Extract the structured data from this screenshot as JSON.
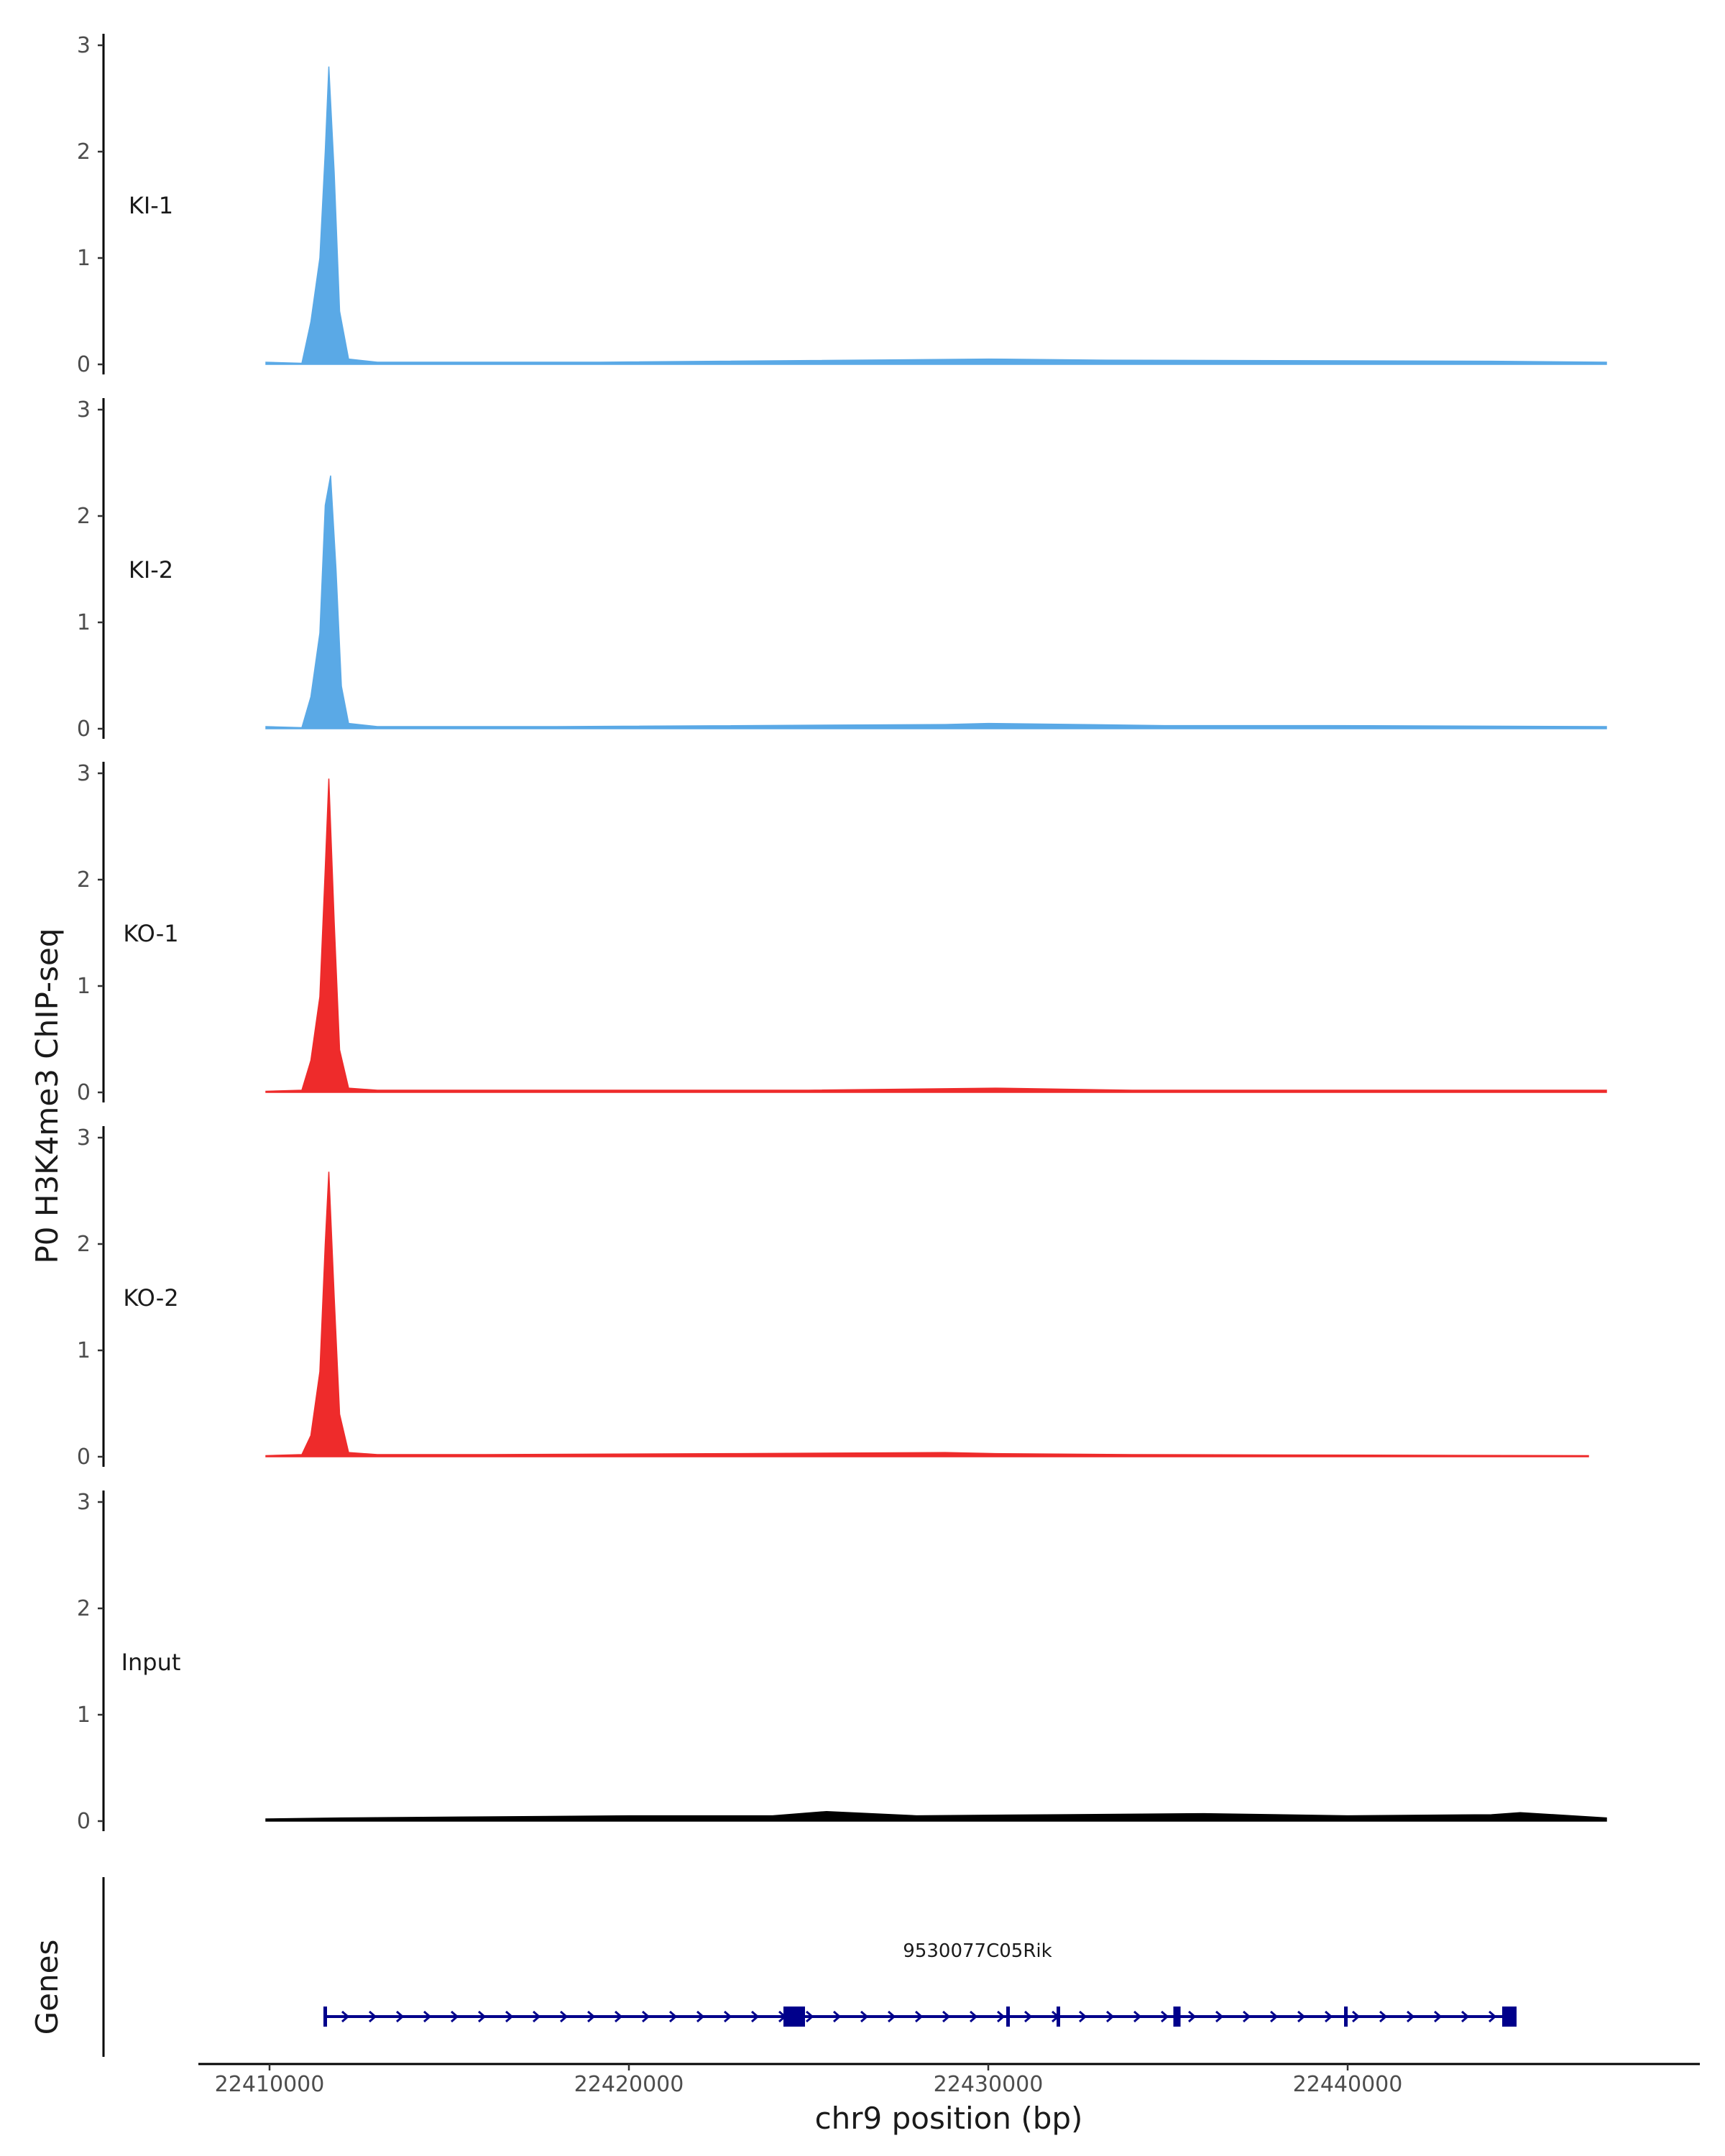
{
  "chart_data": {
    "type": "area",
    "ylabel": "P0 H3K4me3 ChIP-seq",
    "xlabel": "chr9 position (bp)",
    "region": "chr9",
    "xlim": [
      22407000,
      22449000
    ],
    "ylim": [
      0,
      3
    ],
    "y_ticks": [
      "0",
      "1",
      "2",
      "3"
    ],
    "x_ticks": [
      {
        "value": 22410000,
        "label": "22410000"
      },
      {
        "value": 22420000,
        "label": "22420000"
      },
      {
        "value": 22430000,
        "label": "22430000"
      },
      {
        "value": 22440000,
        "label": "22440000"
      }
    ],
    "grid": false,
    "legend": "none",
    "series": [
      {
        "name": "KI-1",
        "color": "#5aa9e6",
        "x": [
          22409900,
          22410900,
          22411150,
          22411400,
          22411550,
          22411650,
          22411800,
          22411950,
          22412200,
          22413000,
          22416000,
          22419200,
          22430000,
          22433300,
          22444000,
          22447200
        ],
        "y": [
          0.02,
          0.01,
          0.4,
          1.0,
          2.0,
          2.8,
          1.8,
          0.5,
          0.05,
          0.02,
          0.02,
          0.02,
          0.05,
          0.04,
          0.03,
          0.02
        ]
      },
      {
        "name": "KI-2",
        "color": "#5aa9e6",
        "x": [
          22409900,
          22410900,
          22411150,
          22411400,
          22411550,
          22411700,
          22411850,
          22412000,
          22412200,
          22413000,
          22418000,
          22428800,
          22430000,
          22434900,
          22439500,
          22447200
        ],
        "y": [
          0.02,
          0.01,
          0.3,
          0.9,
          2.1,
          2.38,
          1.5,
          0.4,
          0.05,
          0.02,
          0.02,
          0.04,
          0.05,
          0.03,
          0.03,
          0.02
        ]
      },
      {
        "name": "KO-1",
        "color": "#ee2b2b",
        "x": [
          22409900,
          22410900,
          22411150,
          22411400,
          22411550,
          22411650,
          22411800,
          22411950,
          22412200,
          22413000,
          22425000,
          22430200,
          22434000,
          22440000,
          22447200
        ],
        "y": [
          0.01,
          0.02,
          0.3,
          0.9,
          2.1,
          2.95,
          1.6,
          0.4,
          0.04,
          0.02,
          0.02,
          0.04,
          0.02,
          0.02,
          0.02
        ]
      },
      {
        "name": "KO-2",
        "color": "#ee2b2b",
        "x": [
          22409900,
          22410900,
          22411150,
          22411400,
          22411550,
          22411650,
          22411800,
          22411950,
          22412200,
          22413000,
          22416000,
          22423000,
          22428800,
          22430200,
          22434000,
          22446700
        ],
        "y": [
          0.01,
          0.02,
          0.2,
          0.8,
          2.0,
          2.68,
          1.5,
          0.4,
          0.04,
          0.02,
          0.02,
          0.03,
          0.04,
          0.03,
          0.02,
          0.01
        ]
      },
      {
        "name": "Input",
        "color": "#000000",
        "x": [
          22409900,
          22412000,
          22416000,
          22420000,
          22424000,
          22425500,
          22428000,
          22432000,
          22436000,
          22440000,
          22444000,
          22444800,
          22447200
        ],
        "y": [
          0.02,
          0.03,
          0.04,
          0.05,
          0.05,
          0.09,
          0.05,
          0.06,
          0.07,
          0.05,
          0.06,
          0.08,
          0.03
        ]
      }
    ],
    "genes_track": {
      "label": "Genes",
      "gene_name": "9530077C05Rik",
      "color": "#00008b",
      "strand": "+",
      "start": 22411500,
      "end": 22444700,
      "exons": [
        {
          "start": 22411500,
          "end": 22411550
        },
        {
          "start": 22424300,
          "end": 22424900
        },
        {
          "start": 22430500,
          "end": 22430600
        },
        {
          "start": 22431900,
          "end": 22431950
        },
        {
          "start": 22435150,
          "end": 22435350
        },
        {
          "start": 22439900,
          "end": 22439950
        },
        {
          "start": 22444300,
          "end": 22444700
        }
      ]
    }
  }
}
